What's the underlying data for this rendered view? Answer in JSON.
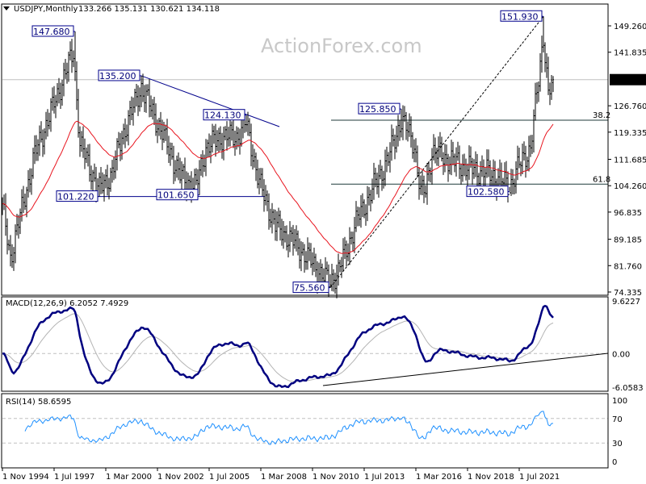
{
  "header": {
    "symbol": "USDJPY,Monthly",
    "ohlc": "133.266 135.131 130.621 134.118",
    "watermark": "ActionForex.com"
  },
  "chart_data": {
    "type": "ohlc",
    "symbol": "USDJPY",
    "timeframe": "Monthly",
    "colors": {
      "bars": "#000000",
      "moving_average": "#e8141e",
      "trendlines": "#00008b",
      "fib": "#1f3a3a",
      "macd": "#000080",
      "signal": "#b4b4b4",
      "rsi": "#1e90ff",
      "current_price_bg": "#000000"
    },
    "price_axis": {
      "ylim": [
        74.335,
        151.93
      ],
      "ticks": [
        "149.260",
        "141.835",
        "126.760",
        "119.335",
        "111.685",
        "104.260",
        "96.835",
        "89.185",
        "81.760",
        "74.335"
      ],
      "current_price": "134.118"
    },
    "time_axis": {
      "ticks": [
        "1 Nov 1994",
        "1 Jul 1997",
        "1 Mar 2000",
        "1 Nov 2002",
        "1 Jul 2005",
        "1 Mar 2008",
        "1 Nov 2010",
        "1 Jul 2013",
        "1 Mar 2016",
        "1 Nov 2018",
        "1 Jul 2021"
      ],
      "start": "1994-11",
      "end": "2023-04"
    },
    "last_bar": {
      "open": 133.266,
      "high": 135.131,
      "low": 130.621,
      "close": 134.118
    },
    "price_path": [
      [
        "1994-11",
        98
      ],
      [
        "1995-04",
        84
      ],
      [
        "1996-07",
        113
      ],
      [
        "1997-05",
        125
      ],
      [
        "1998-07",
        142
      ],
      [
        "1998-11",
        116
      ],
      [
        "1999-11",
        103
      ],
      [
        "2000-07",
        108
      ],
      [
        "2001-01",
        118
      ],
      [
        "2002-01",
        132
      ],
      [
        "2003-01",
        120
      ],
      [
        "2004-01",
        107
      ],
      [
        "2004-11",
        104
      ],
      [
        "2005-05",
        115
      ],
      [
        "2006-03",
        118
      ],
      [
        "2006-12",
        118
      ],
      [
        "2007-06",
        122
      ],
      [
        "2008-02",
        105
      ],
      [
        "2008-12",
        93
      ],
      [
        "2009-10",
        89
      ],
      [
        "2010-08",
        84
      ],
      [
        "2011-09",
        77
      ],
      [
        "2012-03",
        80
      ],
      [
        "2013-03",
        95
      ],
      [
        "2013-12",
        103
      ],
      [
        "2014-10",
        112
      ],
      [
        "2015-06",
        123
      ],
      [
        "2016-02",
        116
      ],
      [
        "2016-06",
        102
      ],
      [
        "2016-09",
        103
      ],
      [
        "2017-01",
        114
      ],
      [
        "2017-10",
        112
      ],
      [
        "2019-01",
        109
      ],
      [
        "2019-11",
        108
      ],
      [
        "2020-04",
        107
      ],
      [
        "2021-01",
        104
      ],
      [
        "2021-07",
        110
      ],
      [
        "2022-02",
        115
      ],
      [
        "2022-07",
        134
      ],
      [
        "2022-10",
        147
      ],
      [
        "2023-01",
        130
      ],
      [
        "2023-04",
        134.118
      ]
    ],
    "swing_labels": [
      {
        "date": "1998-08",
        "price": 147.68,
        "type": "high",
        "text": "147.680"
      },
      {
        "date": "2002-01",
        "price": 135.2,
        "type": "high",
        "text": "135.200"
      },
      {
        "date": "1999-11",
        "price": 101.22,
        "type": "low",
        "text": "101.220"
      },
      {
        "date": "2005-01",
        "price": 101.65,
        "type": "low",
        "text": "101.650"
      },
      {
        "date": "2007-06",
        "price": 124.13,
        "type": "high",
        "text": "124.130"
      },
      {
        "date": "2011-10",
        "price": 75.56,
        "type": "low",
        "text": "75.560"
      },
      {
        "date": "2015-06",
        "price": 125.85,
        "type": "high",
        "text": "125.850"
      },
      {
        "date": "2021-01",
        "price": 102.58,
        "type": "low",
        "text": "102.580"
      },
      {
        "date": "2022-10",
        "price": 151.93,
        "type": "high",
        "text": "151.930"
      }
    ],
    "fibonacci": [
      {
        "label": "38.2",
        "price": 122.7
      },
      {
        "label": "61.8",
        "price": 104.7
      }
    ],
    "moving_average": {
      "type": "EMA",
      "period": 40
    },
    "macd": {
      "title": "MACD(12,26,9) 6.2052 7.4929",
      "params": [
        12,
        26,
        9
      ],
      "ylim": [
        -6.0583,
        9.6227
      ],
      "ticks": [
        "9.6227",
        "0.00",
        "-6.0583"
      ]
    },
    "rsi": {
      "title": "RSI(14) 58.6595",
      "period": 14,
      "ylim": [
        0,
        100
      ],
      "ticks": [
        "100",
        "70",
        "30",
        "0"
      ],
      "levels": [
        70,
        30
      ]
    }
  }
}
